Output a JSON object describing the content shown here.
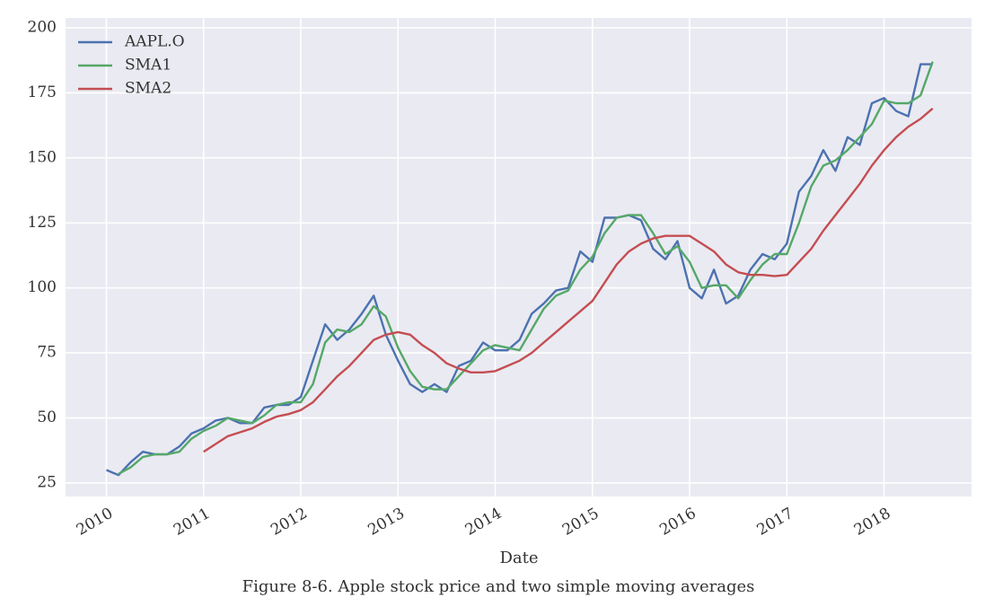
{
  "chart_data": {
    "type": "line",
    "xlabel": "Date",
    "caption": "Figure 8-6. Apple stock price and two simple moving averages",
    "x": [
      2010.0,
      2010.125,
      2010.25,
      2010.375,
      2010.5,
      2010.625,
      2010.75,
      2010.875,
      2011.0,
      2011.125,
      2011.25,
      2011.375,
      2011.5,
      2011.625,
      2011.75,
      2011.875,
      2012.0,
      2012.125,
      2012.25,
      2012.375,
      2012.5,
      2012.625,
      2012.75,
      2012.875,
      2013.0,
      2013.125,
      2013.25,
      2013.375,
      2013.5,
      2013.625,
      2013.75,
      2013.875,
      2014.0,
      2014.125,
      2014.25,
      2014.375,
      2014.5,
      2014.625,
      2014.75,
      2014.875,
      2015.0,
      2015.125,
      2015.25,
      2015.375,
      2015.5,
      2015.625,
      2015.75,
      2015.875,
      2016.0,
      2016.125,
      2016.25,
      2016.375,
      2016.5,
      2016.625,
      2016.75,
      2016.875,
      2017.0,
      2017.125,
      2017.25,
      2017.375,
      2017.5,
      2017.625,
      2017.75,
      2017.875,
      2018.0,
      2018.125,
      2018.25,
      2018.375,
      2018.5
    ],
    "series": [
      {
        "name": "AAPL.O",
        "color": "#4c72b0",
        "values": [
          30,
          28,
          33,
          37,
          36,
          36,
          39,
          44,
          46,
          49,
          50,
          48,
          48,
          54,
          55,
          55,
          58,
          72,
          86,
          80,
          84,
          90,
          97,
          82,
          72,
          63,
          60,
          63,
          60,
          70,
          72,
          79,
          76,
          76,
          80,
          90,
          94,
          99,
          100,
          114,
          110,
          127,
          127,
          128,
          126,
          115,
          111,
          118,
          100,
          96,
          107,
          94,
          97,
          107,
          113,
          111,
          117,
          137,
          143,
          153,
          145,
          158,
          155,
          171,
          173,
          168,
          166,
          186,
          186
        ]
      },
      {
        "name": "SMA1",
        "color": "#55a868",
        "values": [
          null,
          28.5,
          31,
          35,
          36,
          36,
          37,
          42,
          45,
          47,
          50,
          49,
          48,
          51,
          55,
          56,
          56,
          63,
          79,
          84,
          83,
          86,
          93,
          89,
          77,
          68,
          62,
          61,
          61,
          66,
          71,
          76,
          78,
          77,
          76,
          84,
          92,
          97,
          99,
          107,
          112,
          121,
          127,
          128,
          128,
          121,
          113,
          116,
          110,
          100,
          101,
          101,
          96,
          103,
          109,
          113,
          113,
          125,
          139,
          147,
          149,
          153,
          158,
          163,
          172,
          171,
          171,
          174,
          187
        ]
      },
      {
        "name": "SMA2",
        "color": "#c44e52",
        "values": [
          null,
          null,
          null,
          null,
          null,
          null,
          null,
          null,
          37,
          40,
          43,
          44.5,
          46,
          48.5,
          50.5,
          51.5,
          53,
          56,
          61,
          66,
          70,
          75,
          80,
          82,
          83,
          82,
          78,
          75,
          71,
          69,
          67.5,
          67.5,
          68,
          70,
          72,
          75,
          79,
          83,
          87,
          91,
          95,
          102,
          109,
          114,
          117,
          119,
          120,
          120,
          120,
          117,
          114,
          109,
          106,
          105,
          105,
          104.5,
          105,
          110,
          115,
          122,
          128,
          134,
          140,
          147,
          153,
          158,
          162,
          165,
          169
        ]
      }
    ],
    "xlim": [
      2009.58,
      2018.9
    ],
    "xticks": [
      2010,
      2011,
      2012,
      2013,
      2014,
      2015,
      2016,
      2017,
      2018
    ],
    "ylim": [
      19.8,
      203.8
    ],
    "yticks": [
      25,
      50,
      75,
      100,
      125,
      150,
      175,
      200
    ],
    "grid": true,
    "legend": "upper-left"
  }
}
